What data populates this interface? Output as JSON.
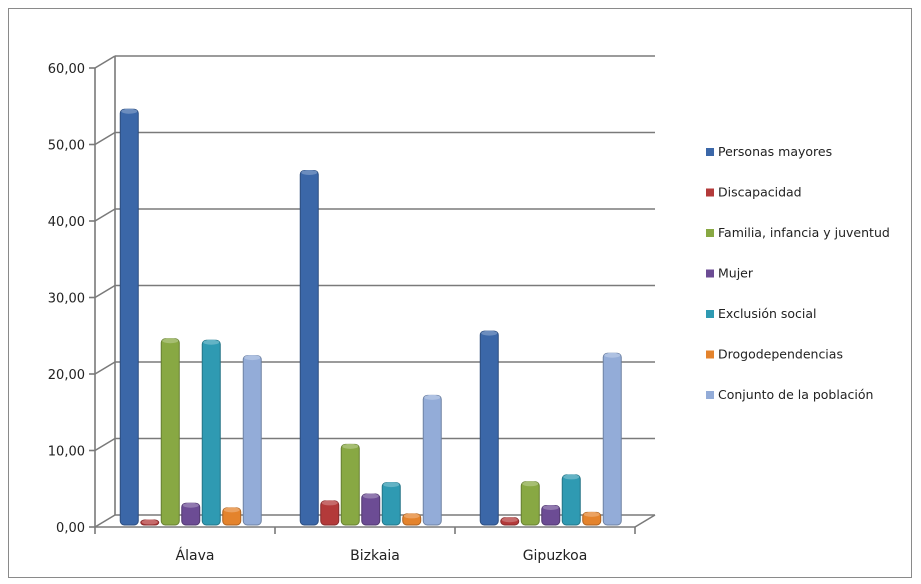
{
  "chart_data": {
    "type": "bar",
    "categories": [
      "Álava",
      "Bizkaia",
      "Gipuzkoa"
    ],
    "series": [
      {
        "name": "Personas mayores",
        "values": [
          55.0,
          47.0,
          26.0
        ],
        "color": "#3b67a8"
      },
      {
        "name": "Discapacidad",
        "values": [
          1.3,
          3.8,
          1.6
        ],
        "color": "#b33a3a"
      },
      {
        "name": "Familia, infancia y juventud",
        "values": [
          25.0,
          11.2,
          6.3
        ],
        "color": "#88a843"
      },
      {
        "name": "Mujer",
        "values": [
          3.5,
          4.7,
          3.2
        ],
        "color": "#6c4c94"
      },
      {
        "name": "Exclusión social",
        "values": [
          24.8,
          6.2,
          7.2
        ],
        "color": "#2f9ab2"
      },
      {
        "name": "Drogodependencias",
        "values": [
          2.9,
          2.1,
          2.3
        ],
        "color": "#e4832c"
      },
      {
        "name": "Conjunto de la población",
        "values": [
          22.8,
          17.6,
          23.1
        ],
        "color": "#93acd8"
      }
    ],
    "ylim": [
      0,
      60
    ],
    "yticks": [
      0,
      10,
      20,
      30,
      40,
      50,
      60
    ],
    "ytick_labels": [
      "0,00",
      "10,00",
      "20,00",
      "30,00",
      "40,00",
      "50,00",
      "60,00"
    ],
    "grid": true,
    "legend_position": "right",
    "title": "",
    "xlabel": "",
    "ylabel": ""
  }
}
